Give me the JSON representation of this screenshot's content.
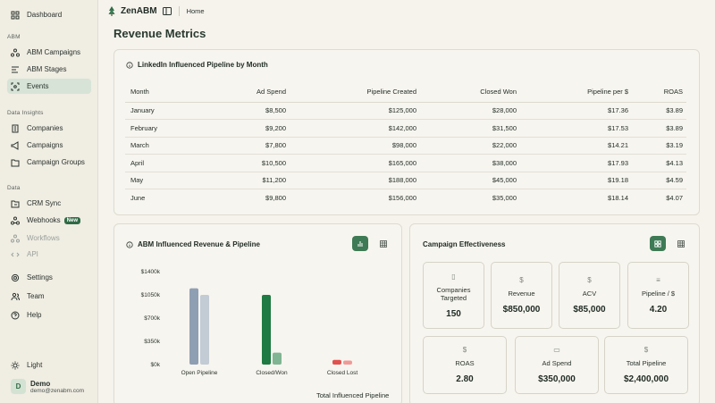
{
  "sidebar": {
    "dashboard": "Dashboard",
    "section_abm": "ABM",
    "abm_campaigns": "ABM Campaigns",
    "abm_stages": "ABM Stages",
    "events": "Events",
    "section_insights": "Data Insights",
    "companies": "Companies",
    "campaigns": "Campaigns",
    "campaign_groups": "Campaign Groups",
    "section_data": "Data",
    "crm_sync": "CRM Sync",
    "webhooks": "Webhooks",
    "webhooks_badge": "New",
    "workflows": "Workflows",
    "api": "API",
    "settings": "Settings",
    "team": "Team",
    "help": "Help",
    "theme": "Light",
    "user": {
      "initial": "D",
      "name": "Demo",
      "email": "demo@zenabm.com"
    }
  },
  "topbar": {
    "brand": "ZenABM",
    "breadcrumb": "Home"
  },
  "page_title": "Revenue Metrics",
  "pipeline_table": {
    "title": "LinkedIn Influenced Pipeline by Month",
    "headers": [
      "Month",
      "Ad Spend",
      "Pipeline Created",
      "Closed Won",
      "Pipeline per $",
      "ROAS"
    ],
    "rows": [
      [
        "January",
        "$8,500",
        "$125,000",
        "$28,000",
        "$17.36",
        "$3.89"
      ],
      [
        "February",
        "$9,200",
        "$142,000",
        "$31,500",
        "$17.53",
        "$3.89"
      ],
      [
        "March",
        "$7,800",
        "$98,000",
        "$22,000",
        "$14.21",
        "$3.19"
      ],
      [
        "April",
        "$10,500",
        "$165,000",
        "$38,000",
        "$17.93",
        "$4.13"
      ],
      [
        "May",
        "$11,200",
        "$188,000",
        "$45,000",
        "$19.18",
        "$4.59"
      ],
      [
        "June",
        "$9,800",
        "$156,000",
        "$35,000",
        "$18.14",
        "$4.07"
      ]
    ]
  },
  "revenue_chart": {
    "title": "ABM Influenced Revenue & Pipeline",
    "footer_label": "Total Influenced Pipeline"
  },
  "chart_data": {
    "type": "bar",
    "categories": [
      "Open Pipeline",
      "Closed/Won",
      "Closed Lost"
    ],
    "series": [
      {
        "values": [
          1150000,
          1050000,
          70000
        ],
        "color": "#8f9fb3"
      },
      {
        "values": [
          1050000,
          180000,
          60000
        ],
        "color": "#c3cbd4"
      }
    ],
    "bar_colors": [
      [
        "#8f9fb3",
        "#c3cbd4"
      ],
      [
        "#1f7a43",
        "#7fb592"
      ],
      [
        "#e0524f",
        "#f09a98"
      ]
    ],
    "yticks": [
      "$0k",
      "$350k",
      "$700k",
      "$1050k",
      "$1400k"
    ],
    "ylim": [
      0,
      1400000
    ]
  },
  "effectiveness": {
    "title": "Campaign Effectiveness",
    "tiles": [
      {
        "label": "Companies Targeted",
        "value": "150",
        "icon": "building-icon"
      },
      {
        "label": "Revenue",
        "value": "$850,000",
        "icon": "dollar-icon"
      },
      {
        "label": "ACV",
        "value": "$85,000",
        "icon": "dollar-icon"
      },
      {
        "label": "Pipeline / $",
        "value": "4.20",
        "icon": "filter-icon"
      },
      {
        "label": "ROAS",
        "value": "2.80",
        "icon": "dollar-icon"
      },
      {
        "label": "Ad Spend",
        "value": "$350,000",
        "icon": "banknote-icon"
      },
      {
        "label": "Total Pipeline",
        "value": "$2,400,000",
        "icon": "dollar-icon"
      }
    ]
  }
}
